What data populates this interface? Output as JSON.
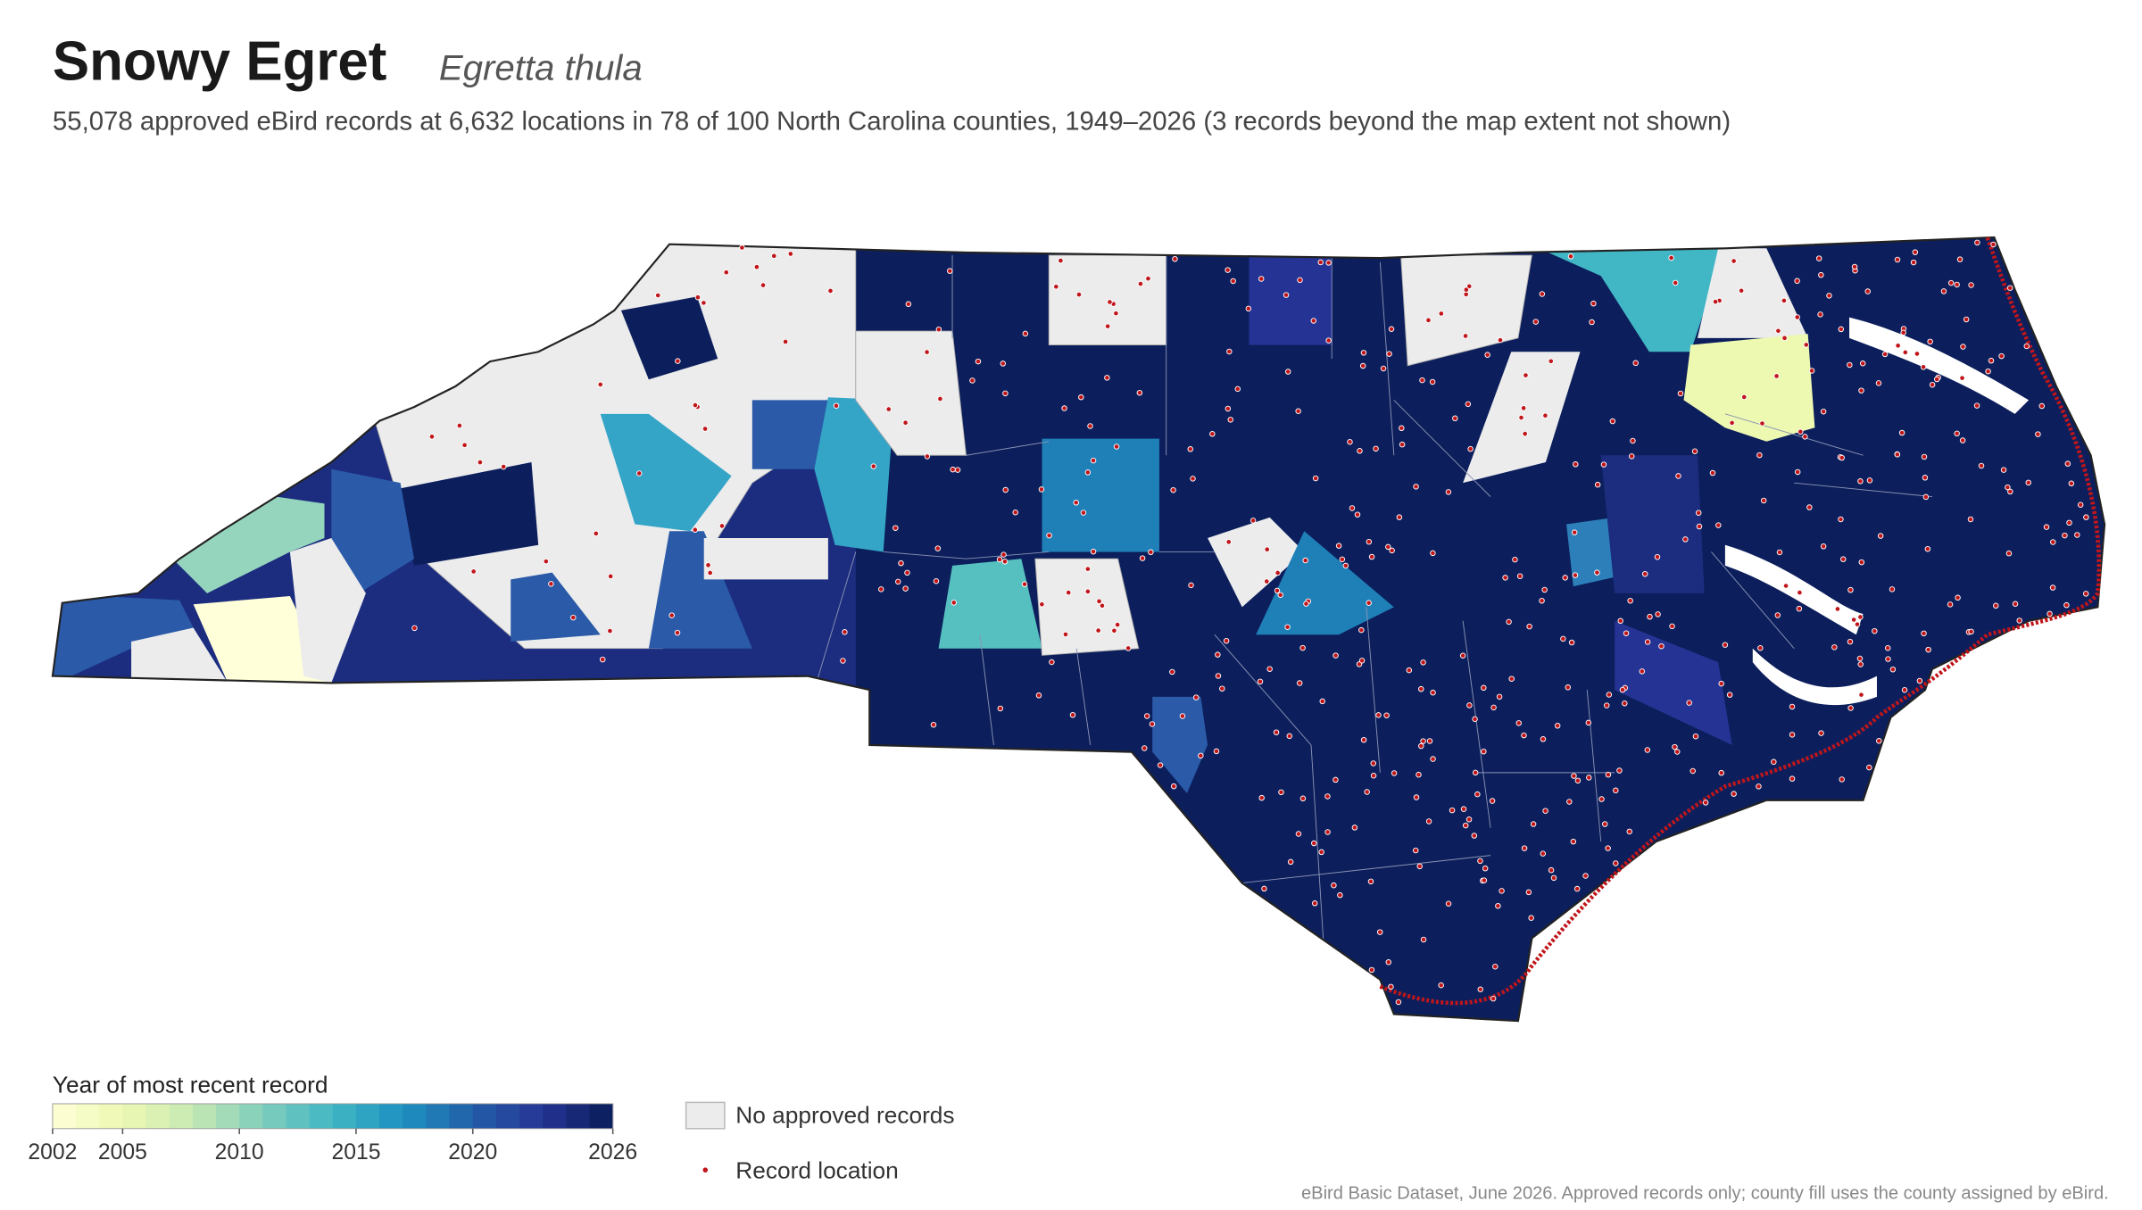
{
  "header": {
    "title": "Snowy Egret",
    "subtitle": "Egretta thula",
    "description": "55,078 approved eBird records at 6,632 locations in 78 of 100 North Carolina counties, 1949–2026 (3 records beyond the map extent not shown)"
  },
  "legend": {
    "title": "Year of most recent record",
    "range": [
      2002,
      2026
    ],
    "ticks": [
      2002,
      2005,
      2010,
      2015,
      2020,
      2026
    ],
    "items": [
      "No approved records",
      "Record location"
    ]
  },
  "footnote": "eBird Basic Dataset, June 2026. Approved records only; county fill uses the county assigned by eBird."
}
